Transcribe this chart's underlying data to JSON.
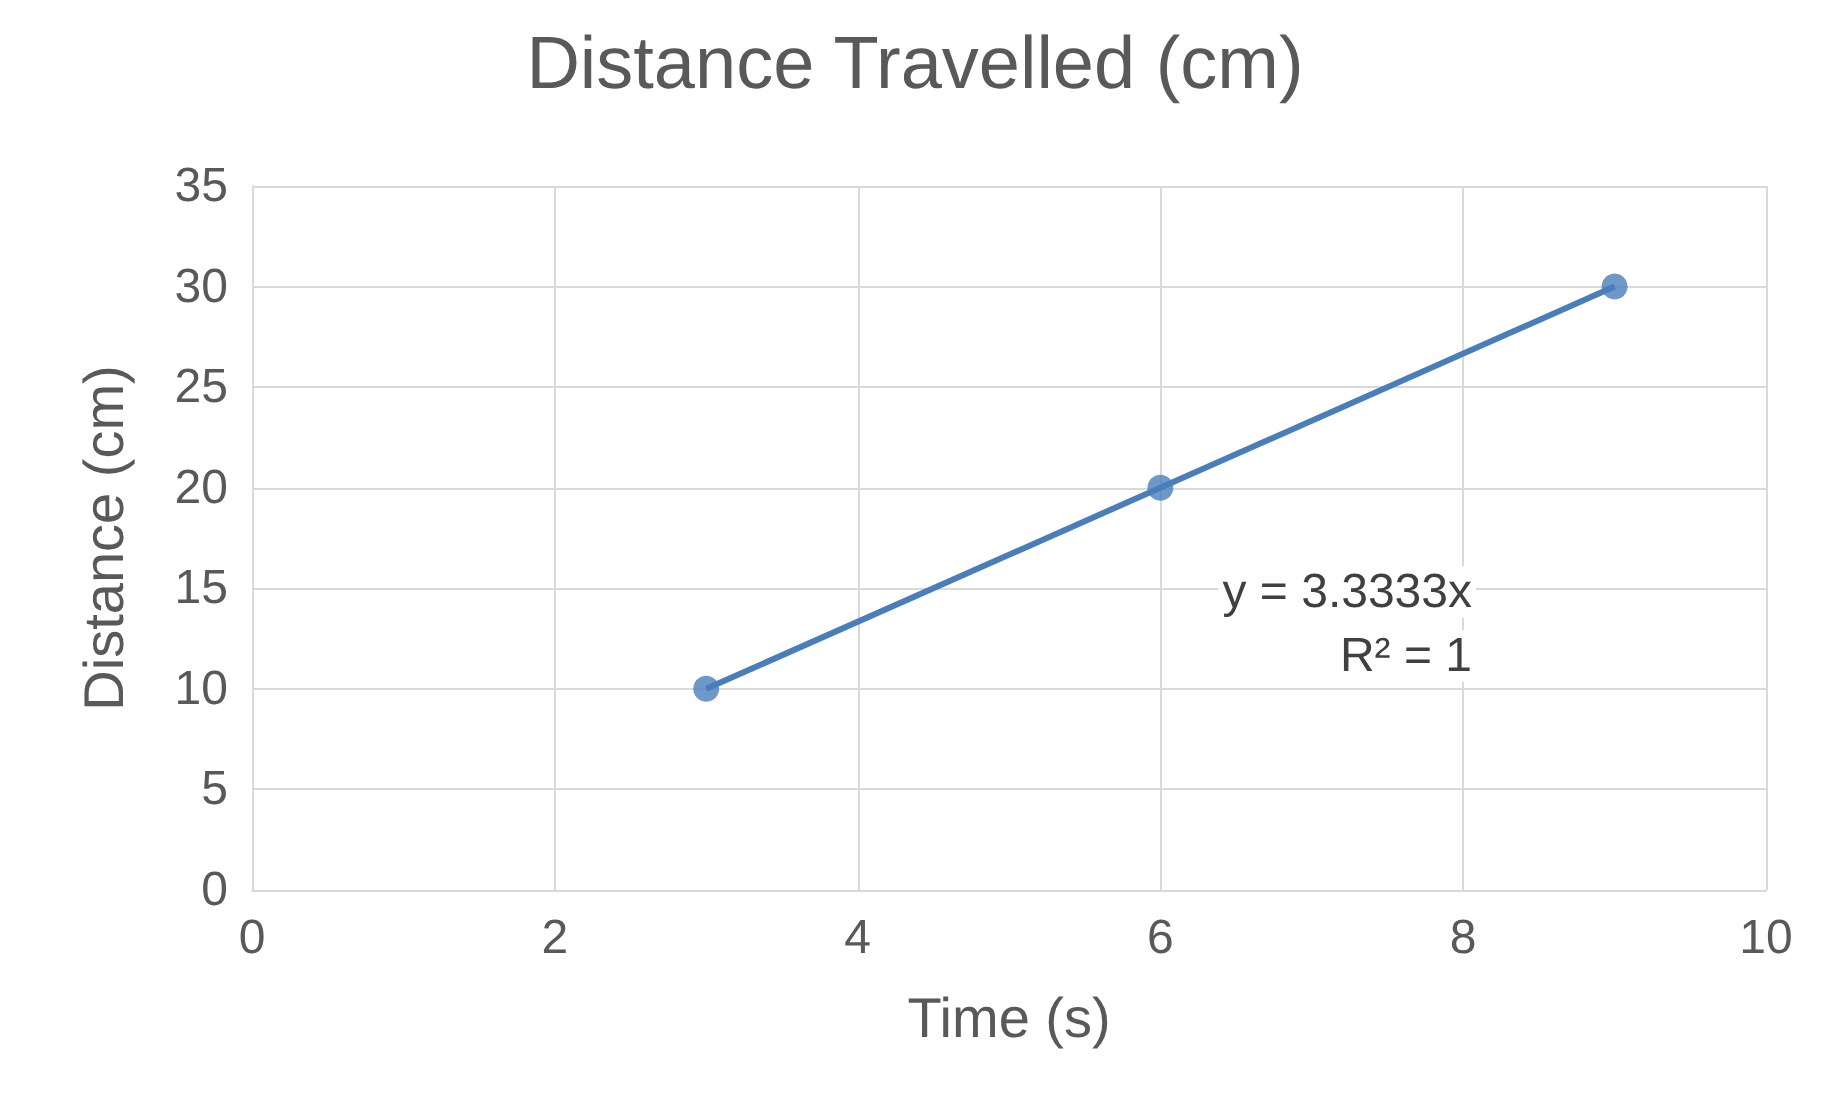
{
  "chart_data": {
    "type": "scatter",
    "title": "Distance Travelled (cm)",
    "xlabel": "Time (s)",
    "ylabel": "Distance (cm)",
    "xlim": [
      0,
      10
    ],
    "xticks": [
      0,
      2,
      4,
      6,
      8,
      10
    ],
    "ylim": [
      0,
      35
    ],
    "yticks": [
      0,
      5,
      10,
      15,
      20,
      25,
      30,
      35
    ],
    "grid": true,
    "series": [
      {
        "color": "#4a7ebb",
        "x": [
          3,
          6,
          9
        ],
        "values": [
          10,
          20,
          30
        ],
        "marker": "circle"
      },
      {
        "type": "line",
        "color": "#4a7ebb",
        "x": [
          3,
          9
        ],
        "values": [
          10,
          30
        ],
        "line_style": "solid",
        "marker": "none"
      }
    ],
    "annotations": [
      "y = 3.3333x",
      "R² = 1"
    ]
  }
}
